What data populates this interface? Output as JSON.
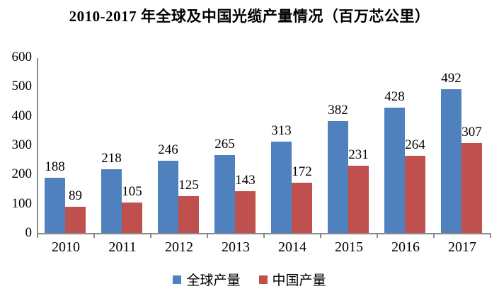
{
  "title": "2010-2017 年全球及中国光缆产量情况（百万芯公里）",
  "chart_data": {
    "type": "bar",
    "categories": [
      "2010",
      "2011",
      "2012",
      "2013",
      "2014",
      "2015",
      "2016",
      "2017"
    ],
    "series": [
      {
        "name": "全球产量",
        "color": "#4E81BE",
        "values": [
          188,
          218,
          246,
          265,
          313,
          382,
          428,
          492
        ]
      },
      {
        "name": "中国产量",
        "color": "#C0504D",
        "values": [
          89,
          105,
          125,
          143,
          172,
          231,
          264,
          307
        ]
      }
    ],
    "ylim": [
      0,
      600
    ],
    "yticks": [
      0,
      100,
      200,
      300,
      400,
      500,
      600
    ],
    "grid": false,
    "legend_position": "bottom",
    "data_labels": true,
    "axis_color": "#8C8C8C",
    "text_color": "#000000"
  }
}
